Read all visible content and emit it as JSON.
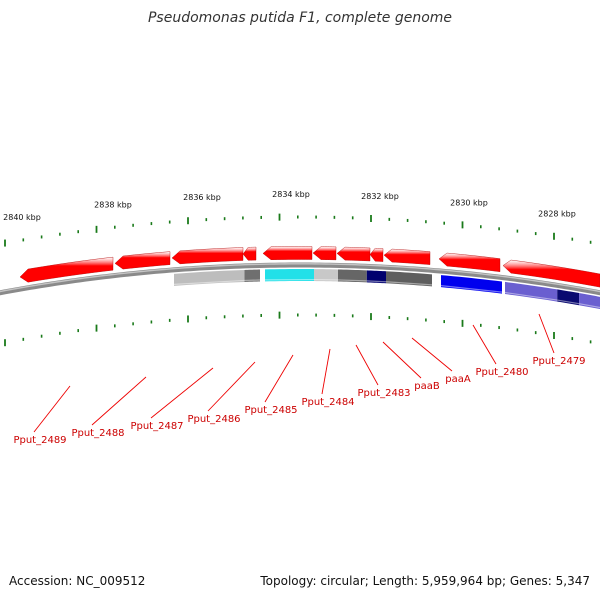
{
  "title": "Pseudomonas putida F1, complete genome",
  "footer": {
    "accession": "Accession: NC_009512",
    "summary": "Topology: circular; Length: 5,959,964 bp; Genes: 5,347"
  },
  "colors": {
    "forward_gene": "#ff0000",
    "tick": "#1a7a1a",
    "backbone": "#888888",
    "label": "#cc0000",
    "leader": "#ee0000"
  },
  "scale": {
    "unit": "kbp",
    "labels": [
      "2840 kbp",
      "2838 kbp",
      "2836 kbp",
      "2834 kbp",
      "2832 kbp",
      "2830 kbp",
      "2828 kbp"
    ]
  },
  "genes": [
    {
      "name": "Pput_2489",
      "strand": "-",
      "category_colors": []
    },
    {
      "name": "Pput_2488",
      "strand": "-",
      "category_colors": []
    },
    {
      "name": "Pput_2487",
      "strand": "-",
      "category_colors": [
        "#bdbdbd",
        "#6f6f6f"
      ]
    },
    {
      "name": "Pput_2486",
      "strand": "-",
      "category_colors": []
    },
    {
      "name": "Pput_2485",
      "strand": "-",
      "category_colors": [
        "#22e0e8"
      ]
    },
    {
      "name": "Pput_2484",
      "strand": "-",
      "category_colors": [
        "#c8c8c8"
      ]
    },
    {
      "name": "Pput_2483",
      "strand": "-",
      "category_colors": [
        "#666666",
        "#00006e"
      ]
    },
    {
      "name": "paaB",
      "strand": "-",
      "category_colors": []
    },
    {
      "name": "paaA",
      "strand": "-",
      "category_colors": [
        "#5e5e5e"
      ]
    },
    {
      "name": "Pput_2480",
      "strand": "-",
      "category_colors": [
        "#0000ee"
      ]
    },
    {
      "name": "Pput_2479",
      "strand": "-",
      "category_colors": [
        "#6a5fd0",
        "#0a0a70",
        "#6a5fd0"
      ]
    }
  ]
}
